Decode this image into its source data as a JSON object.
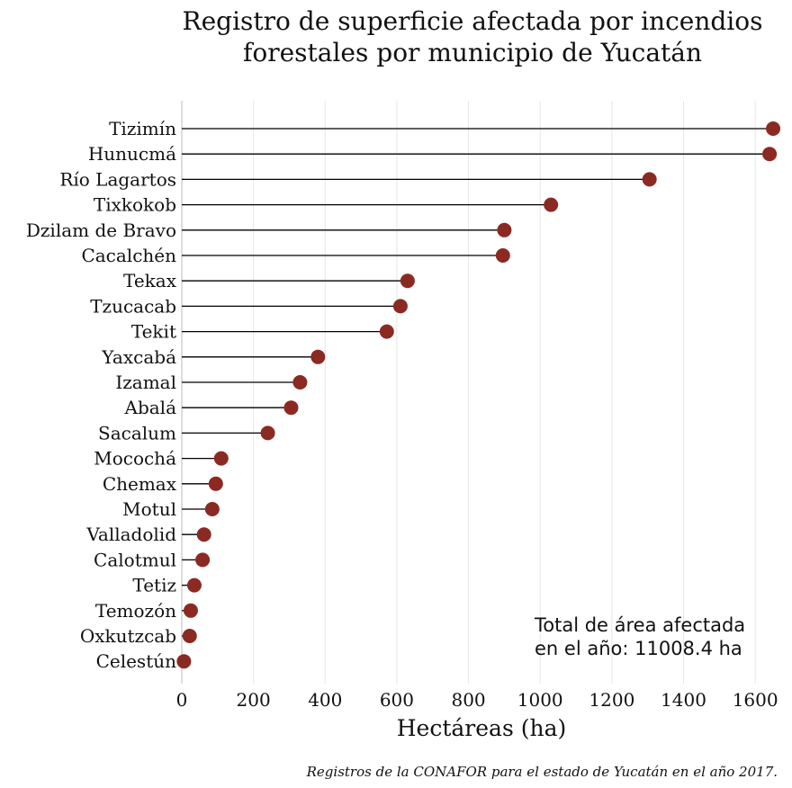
{
  "chart_data": {
    "type": "lollipop",
    "title": [
      "Registro de superficie afectada por incendios",
      "forestales por municipio de Yucatán"
    ],
    "xlabel": "Hectáreas (ha)",
    "ylabel": "",
    "xlim": [
      0,
      1680
    ],
    "xticks": [
      0,
      200,
      400,
      600,
      800,
      1000,
      1200,
      1400,
      1600
    ],
    "grid": "vertical",
    "marker_color": "#8b2a22",
    "stem_color": "#000000",
    "categories": [
      "Tizimín",
      "Hunucmá",
      "Río Lagartos",
      "Tixkokob",
      "Dzilam de Bravo",
      "Cacalchén",
      "Tekax",
      "Tzucacab",
      "Tekit",
      "Yaxcabá",
      "Izamal",
      "Abalá",
      "Sacalum",
      "Mocochá",
      "Chemax",
      "Motul",
      "Valladolid",
      "Calotmul",
      "Tetiz",
      "Temozón",
      "Oxkutzcab",
      "Celestún"
    ],
    "values": [
      1650,
      1640,
      1305,
      1030,
      900,
      896,
      630,
      610,
      572,
      380,
      330,
      305,
      240,
      110,
      95,
      85,
      62,
      58,
      35,
      25,
      22,
      6
    ],
    "annotation": [
      "Total de área afectada",
      "en el año: 11008.4 ha"
    ],
    "caption": "Registros de la CONAFOR para el estado de Yucatán en el año 2017."
  }
}
